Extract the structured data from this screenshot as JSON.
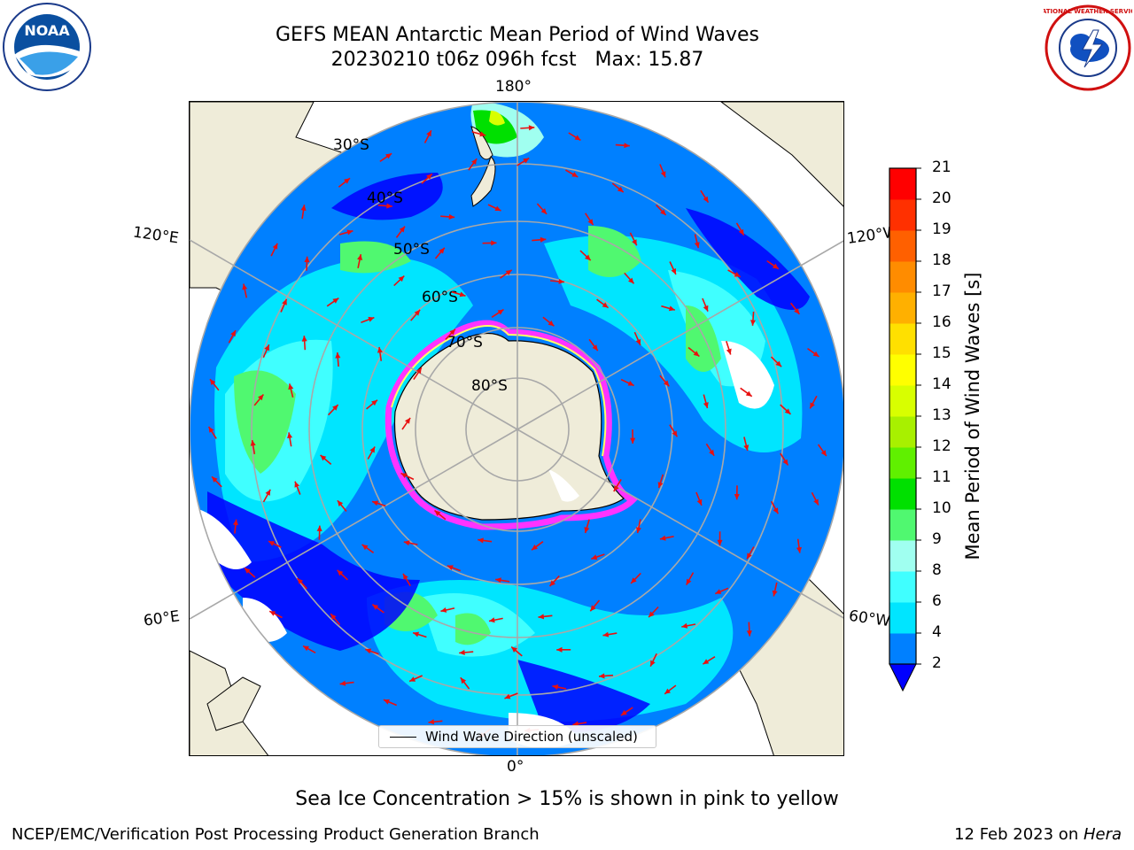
{
  "header": {
    "title_line1": "GEFS MEAN Antarctic Mean Period of Wind Waves",
    "title_line2": "20230210 t06z 096h fcst   Max: 15.87"
  },
  "logos": {
    "left": "noaa-logo",
    "left_text": "NOAA",
    "right": "nws-logo",
    "right_text": "NATIONAL WEATHER SERVICE"
  },
  "map": {
    "projection": "south-polar-stereographic",
    "lon_labels": {
      "top": "180°",
      "bottom": "0°",
      "left_upper": "120°E",
      "left_lower": "60°E",
      "right_upper": "120°W",
      "right_lower": "60°W"
    },
    "lat_labels": [
      "30°S",
      "40°S",
      "50°S",
      "60°S",
      "70°S",
      "80°S"
    ],
    "land_color": "#efecd9",
    "sea_ice_colors": [
      "#ff33ff",
      "#ff99cc",
      "#ffff66"
    ]
  },
  "legend": {
    "line_label": "Wind Wave Direction (unscaled)"
  },
  "colorbar": {
    "label": "Mean Period of Wind Waves [s]",
    "ticks": [
      "2",
      "4",
      "6",
      "8",
      "9",
      "10",
      "11",
      "12",
      "13",
      "14",
      "15",
      "16",
      "17",
      "18",
      "19",
      "20",
      "21"
    ],
    "under_color": "#0000ff",
    "colors": [
      "#0080ff",
      "#00e5ff",
      "#40ffff",
      "#a0fff0",
      "#50f870",
      "#00e000",
      "#60f000",
      "#a8f000",
      "#d8ff00",
      "#ffff00",
      "#ffe000",
      "#ffb000",
      "#ff8c00",
      "#ff6000",
      "#ff3000",
      "#ff0000"
    ]
  },
  "footer": {
    "note": "Sea Ice Concentration > 15% is shown in pink to yellow",
    "credit_left": "NCEP/EMC/Verification Post Processing Product Generation Branch",
    "credit_right_date": "12 Feb 2023 on ",
    "credit_right_machine": "Hera"
  }
}
